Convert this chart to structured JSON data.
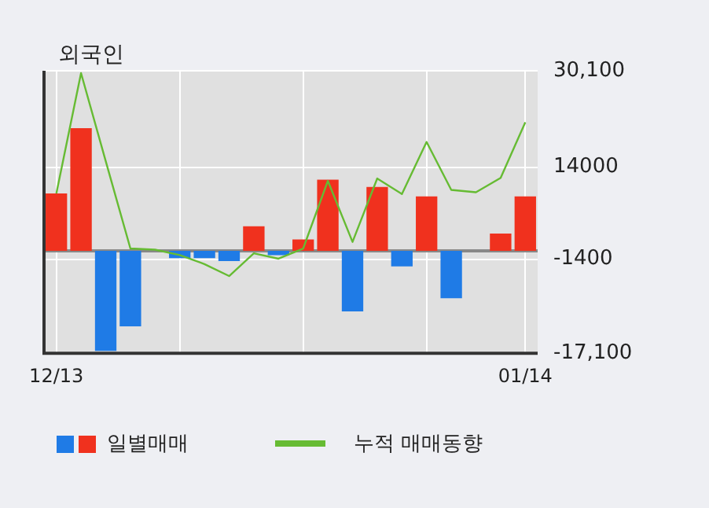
{
  "chart_data": {
    "type": "bar",
    "title": "외국인",
    "categories": [
      "12/13",
      null,
      null,
      null,
      null,
      null,
      null,
      null,
      null,
      null,
      null,
      null,
      null,
      null,
      null,
      null,
      null,
      null,
      null,
      "01/14"
    ],
    "series": [
      {
        "name": "일별매매",
        "colors": [
          "#f0311e",
          "#f0311e",
          "#1f7be6",
          "#1f7be6",
          null,
          "#1f7be6",
          "#1f7be6",
          "#1f7be6",
          "#f0311e",
          "#1f7be6",
          "#f0311e",
          "#f0311e",
          "#1f7be6",
          "#f0311e",
          "#1f7be6",
          "#f0311e",
          "#1f7be6",
          null,
          "#f0311e",
          "#f0311e"
        ],
        "values": [
          9600,
          20500,
          -16700,
          -12600,
          null,
          -1200,
          -1200,
          -1700,
          4100,
          -700,
          1900,
          11900,
          -10100,
          10700,
          -2600,
          9100,
          -7900,
          null,
          2900,
          9100
        ]
      },
      {
        "name": "누적 매매동향",
        "type": "line",
        "color": "#66bb33",
        "values": [
          9600,
          29700,
          15000,
          400,
          200,
          -700,
          -2200,
          -4200,
          -400,
          -1300,
          400,
          11700,
          1500,
          12100,
          9500,
          18200,
          10200,
          9800,
          12200,
          21500
        ]
      }
    ],
    "ylim": [
      -17100,
      30100
    ],
    "yticks": [
      {
        "value": 30100,
        "label": "30,100"
      },
      14000,
      -1400,
      {
        "value": -17100,
        "label": "-17,100"
      }
    ],
    "grid": true,
    "legend": "bottom",
    "ref_lines": [
      {
        "axis": "y",
        "value": 0,
        "color": "#888888"
      }
    ]
  }
}
